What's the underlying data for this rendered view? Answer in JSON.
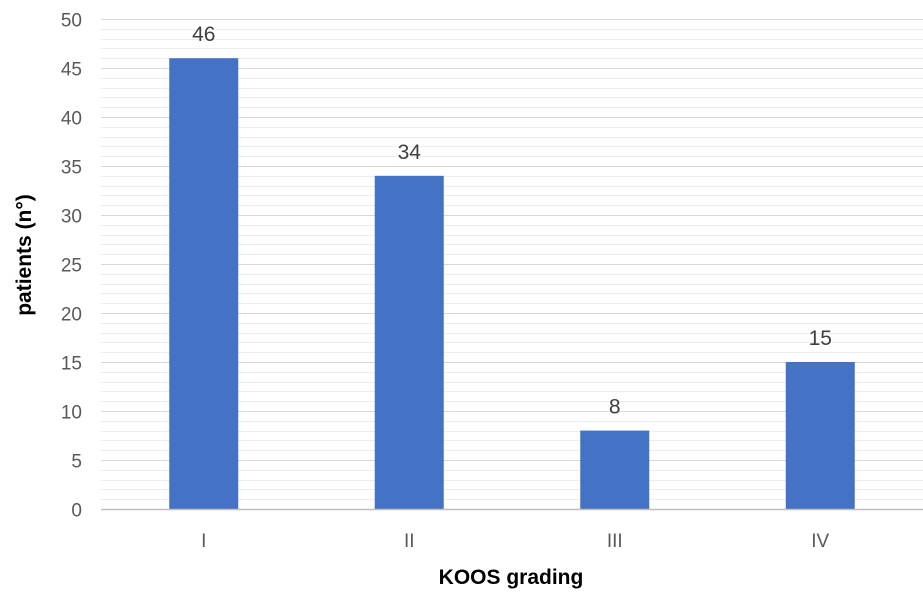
{
  "chart_data": {
    "type": "bar",
    "categories": [
      "I",
      "II",
      "III",
      "IV"
    ],
    "values": [
      46,
      34,
      8,
      15
    ],
    "data_labels": [
      "46",
      "34",
      "8",
      "15"
    ],
    "xlabel": "KOOS grading",
    "ylabel": "patients (n°)",
    "ylim": [
      0,
      50
    ],
    "yticks": [
      0,
      5,
      10,
      15,
      20,
      25,
      30,
      35,
      40,
      45,
      50
    ],
    "ytick_labels": [
      "0",
      "5",
      "10",
      "15",
      "20",
      "25",
      "30",
      "35",
      "40",
      "45",
      "50"
    ],
    "grid": true,
    "legend": "none",
    "colors": {
      "bar": "#4472C4",
      "major_grid": "#D9D9D9",
      "minor_grid": "#EDEDED",
      "axis": "#BFBFBF",
      "tick_text": "#595959",
      "label_text": "#000000",
      "data_label_text": "#404040"
    }
  }
}
